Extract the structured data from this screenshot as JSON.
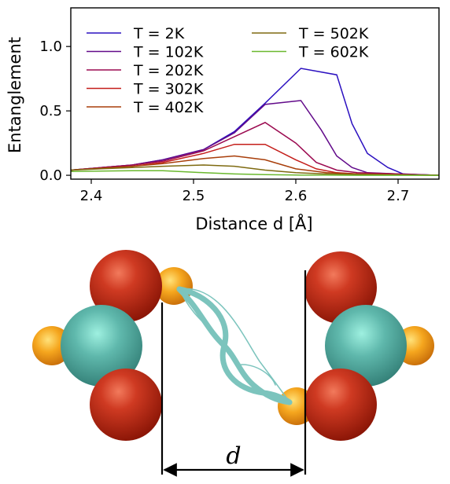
{
  "chart_data": {
    "type": "line",
    "xlabel": "Distance d [Å]",
    "ylabel": "Entanglement",
    "xlim": [
      2.38,
      2.74
    ],
    "ylim": [
      -0.03,
      1.3
    ],
    "xticks": [
      "2.4",
      "2.5",
      "2.6",
      "2.7"
    ],
    "xtick_values": [
      2.4,
      2.5,
      2.6,
      2.7
    ],
    "yticks": [
      "0.0",
      "0.5",
      "1.0"
    ],
    "ytick_values": [
      0.0,
      0.5,
      1.0
    ],
    "legend_placement": "upper-left, two columns",
    "series": [
      {
        "name": "T = 2K",
        "color": "#2b10c0",
        "x": [
          2.38,
          2.44,
          2.47,
          2.51,
          2.54,
          2.57,
          2.605,
          2.64,
          2.655,
          2.67,
          2.69,
          2.705,
          2.74
        ],
        "y": [
          0.04,
          0.08,
          0.12,
          0.2,
          0.34,
          0.56,
          0.83,
          0.78,
          0.4,
          0.17,
          0.06,
          0.01,
          0.0
        ]
      },
      {
        "name": "T = 102K",
        "color": "#620a8a",
        "x": [
          2.38,
          2.44,
          2.47,
          2.51,
          2.54,
          2.57,
          2.605,
          2.625,
          2.64,
          2.655,
          2.67,
          2.7,
          2.74
        ],
        "y": [
          0.04,
          0.08,
          0.12,
          0.2,
          0.33,
          0.55,
          0.58,
          0.35,
          0.15,
          0.06,
          0.02,
          0.01,
          0.0
        ]
      },
      {
        "name": "T = 202K",
        "color": "#9b0a50",
        "x": [
          2.38,
          2.44,
          2.47,
          2.51,
          2.54,
          2.57,
          2.6,
          2.62,
          2.64,
          2.66,
          2.7,
          2.74
        ],
        "y": [
          0.04,
          0.08,
          0.11,
          0.19,
          0.3,
          0.41,
          0.25,
          0.1,
          0.04,
          0.02,
          0.01,
          0.0
        ]
      },
      {
        "name": "T = 302K",
        "color": "#c41e1a",
        "x": [
          2.38,
          2.44,
          2.47,
          2.51,
          2.54,
          2.57,
          2.6,
          2.62,
          2.64,
          2.66,
          2.7,
          2.74
        ],
        "y": [
          0.04,
          0.07,
          0.1,
          0.17,
          0.24,
          0.24,
          0.12,
          0.05,
          0.02,
          0.01,
          0.005,
          0.0
        ]
      },
      {
        "name": "T = 402K",
        "color": "#a83e0a",
        "x": [
          2.38,
          2.44,
          2.47,
          2.51,
          2.54,
          2.57,
          2.6,
          2.63,
          2.66,
          2.7,
          2.74
        ],
        "y": [
          0.04,
          0.07,
          0.09,
          0.13,
          0.15,
          0.12,
          0.05,
          0.02,
          0.01,
          0.005,
          0.0
        ]
      },
      {
        "name": "T = 502K",
        "color": "#7e6a10",
        "x": [
          2.38,
          2.44,
          2.47,
          2.51,
          2.54,
          2.57,
          2.6,
          2.63,
          2.66,
          2.7,
          2.74
        ],
        "y": [
          0.04,
          0.06,
          0.07,
          0.08,
          0.07,
          0.04,
          0.02,
          0.01,
          0.005,
          0.002,
          0.0
        ]
      },
      {
        "name": "T = 602K",
        "color": "#6ab82e",
        "x": [
          2.38,
          2.44,
          2.47,
          2.51,
          2.54,
          2.57,
          2.6,
          2.63,
          2.66,
          2.7,
          2.74
        ],
        "y": [
          0.03,
          0.035,
          0.035,
          0.02,
          0.01,
          0.005,
          0.002,
          0.001,
          0.0,
          0.0,
          0.0
        ]
      }
    ]
  },
  "diagram": {
    "distance_label": "d",
    "colors": {
      "red_atom": "#b32010",
      "teal_atom": "#5fb8ac",
      "orange_atom": "#f0a020",
      "ribbon": "#7cc4bd"
    }
  }
}
